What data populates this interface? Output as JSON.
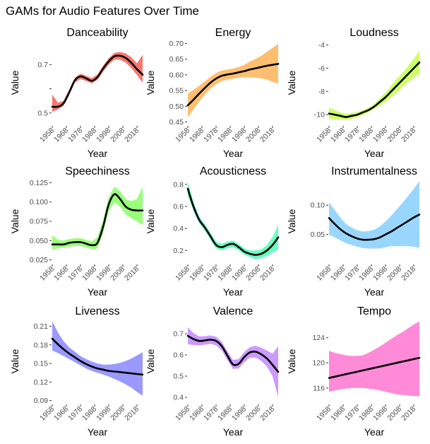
{
  "title": "GAMs for Audio Features Over Time",
  "chart_data": [
    {
      "type": "area",
      "title": "Danceability",
      "xlabel": "Year",
      "ylabel": "Value",
      "color": "#F8766D",
      "xlim": [
        1958,
        2022
      ],
      "ylim": [
        0.45,
        0.8
      ],
      "yticks": [
        0.5,
        0.6,
        0.7
      ],
      "ytick_labels": [
        "0.5",
        "",
        "0.7"
      ],
      "x": [
        1958,
        1962,
        1966,
        1970,
        1974,
        1978,
        1982,
        1986,
        1990,
        1994,
        1998,
        2002,
        2006,
        2010,
        2014,
        2018,
        2022
      ],
      "fit": [
        0.526,
        0.526,
        0.54,
        0.585,
        0.635,
        0.651,
        0.643,
        0.633,
        0.648,
        0.683,
        0.713,
        0.734,
        0.736,
        0.727,
        0.707,
        0.681,
        0.658
      ],
      "lower": [
        0.505,
        0.515,
        0.53,
        0.575,
        0.625,
        0.64,
        0.632,
        0.622,
        0.637,
        0.671,
        0.7,
        0.72,
        0.72,
        0.708,
        0.685,
        0.657,
        0.625
      ],
      "upper": [
        0.577,
        0.542,
        0.551,
        0.596,
        0.645,
        0.662,
        0.654,
        0.644,
        0.659,
        0.695,
        0.726,
        0.748,
        0.752,
        0.746,
        0.73,
        0.705,
        0.741
      ]
    },
    {
      "type": "area",
      "title": "Energy",
      "xlabel": "Year",
      "ylabel": "Value",
      "color": "#FDBF6F",
      "xlim": [
        1958,
        2022
      ],
      "ylim": [
        0.44,
        0.71
      ],
      "yticks": [
        0.45,
        0.5,
        0.55,
        0.6,
        0.65,
        0.7
      ],
      "ytick_labels": [
        "0.45",
        "0.50",
        "0.55",
        "0.60",
        "0.65",
        "0.70"
      ],
      "x": [
        1958,
        1962,
        1966,
        1970,
        1974,
        1978,
        1982,
        1986,
        1990,
        1994,
        1998,
        2002,
        2006,
        2010,
        2014,
        2018,
        2022
      ],
      "fit": [
        0.503,
        0.521,
        0.54,
        0.558,
        0.575,
        0.588,
        0.597,
        0.601,
        0.604,
        0.608,
        0.612,
        0.617,
        0.621,
        0.625,
        0.629,
        0.632,
        0.635
      ],
      "lower": [
        0.465,
        0.49,
        0.515,
        0.537,
        0.556,
        0.57,
        0.58,
        0.585,
        0.588,
        0.591,
        0.592,
        0.592,
        0.591,
        0.589,
        0.585,
        0.578,
        0.572
      ],
      "upper": [
        0.541,
        0.552,
        0.565,
        0.579,
        0.594,
        0.606,
        0.614,
        0.617,
        0.62,
        0.625,
        0.632,
        0.642,
        0.651,
        0.661,
        0.673,
        0.686,
        0.698
      ]
    },
    {
      "type": "area",
      "title": "Loudness",
      "xlabel": "Year",
      "ylabel": "Value",
      "color": "#CCFF66",
      "xlim": [
        1958,
        2022
      ],
      "ylim": [
        -10.9,
        -3.6
      ],
      "yticks": [
        -10,
        -8,
        -6,
        -4
      ],
      "ytick_labels": [
        "-10",
        "-8",
        "-6",
        "-4"
      ],
      "x": [
        1958,
        1962,
        1966,
        1970,
        1974,
        1978,
        1982,
        1986,
        1990,
        1994,
        1998,
        2002,
        2006,
        2010,
        2014,
        2018,
        2022
      ],
      "fit": [
        -9.9,
        -10.0,
        -10.1,
        -10.2,
        -10.1,
        -10.0,
        -9.8,
        -9.6,
        -9.3,
        -8.9,
        -8.5,
        -8.0,
        -7.5,
        -7.0,
        -6.5,
        -6.0,
        -5.5
      ],
      "lower": [
        -10.4,
        -10.4,
        -10.4,
        -10.45,
        -10.35,
        -10.2,
        -10.0,
        -9.8,
        -9.5,
        -9.2,
        -8.9,
        -8.5,
        -8.1,
        -7.6,
        -7.2,
        -6.8,
        -6.5
      ],
      "upper": [
        -9.4,
        -9.6,
        -9.8,
        -9.95,
        -9.85,
        -9.8,
        -9.6,
        -9.4,
        -9.1,
        -8.6,
        -8.1,
        -7.5,
        -6.9,
        -6.4,
        -5.8,
        -5.2,
        -4.5
      ]
    },
    {
      "type": "area",
      "title": "Speechiness",
      "xlabel": "Year",
      "ylabel": "Value",
      "color": "#9AFF7A",
      "xlim": [
        1958,
        2022
      ],
      "ylim": [
        0.02,
        0.13
      ],
      "yticks": [
        0.025,
        0.05,
        0.075,
        0.1,
        0.125
      ],
      "ytick_labels": [
        "0.025",
        "0.050",
        "0.075",
        "0.100",
        "0.125"
      ],
      "x": [
        1958,
        1962,
        1966,
        1970,
        1974,
        1978,
        1982,
        1986,
        1990,
        1994,
        1998,
        2002,
        2006,
        2010,
        2014,
        2018,
        2022
      ],
      "fit": [
        0.045,
        0.045,
        0.045,
        0.047,
        0.048,
        0.048,
        0.046,
        0.044,
        0.047,
        0.068,
        0.097,
        0.11,
        0.104,
        0.094,
        0.09,
        0.089,
        0.089
      ],
      "lower": [
        0.038,
        0.04,
        0.041,
        0.042,
        0.043,
        0.043,
        0.041,
        0.039,
        0.04,
        0.06,
        0.088,
        0.1,
        0.094,
        0.084,
        0.079,
        0.075,
        0.07
      ],
      "upper": [
        0.057,
        0.051,
        0.05,
        0.052,
        0.053,
        0.053,
        0.051,
        0.049,
        0.054,
        0.076,
        0.106,
        0.12,
        0.114,
        0.104,
        0.101,
        0.104,
        0.12
      ]
    },
    {
      "type": "area",
      "title": "Acousticness",
      "xlabel": "Year",
      "ylabel": "Value",
      "color": "#66FFC2",
      "xlim": [
        1958,
        2022
      ],
      "ylim": [
        0.08,
        0.85
      ],
      "yticks": [
        0.2,
        0.4,
        0.6,
        0.8
      ],
      "ytick_labels": [
        "0.2",
        "0.4",
        "0.6",
        "0.8"
      ],
      "x": [
        1958,
        1962,
        1966,
        1970,
        1974,
        1978,
        1982,
        1986,
        1990,
        1994,
        1998,
        2002,
        2006,
        2010,
        2014,
        2018,
        2022
      ],
      "fit": [
        0.76,
        0.6,
        0.48,
        0.41,
        0.33,
        0.25,
        0.23,
        0.25,
        0.26,
        0.23,
        0.19,
        0.17,
        0.16,
        0.17,
        0.2,
        0.25,
        0.32
      ],
      "lower": [
        0.7,
        0.56,
        0.45,
        0.38,
        0.3,
        0.22,
        0.2,
        0.22,
        0.23,
        0.2,
        0.16,
        0.14,
        0.12,
        0.13,
        0.15,
        0.18,
        0.21
      ],
      "upper": [
        0.82,
        0.64,
        0.51,
        0.44,
        0.36,
        0.28,
        0.26,
        0.28,
        0.29,
        0.26,
        0.22,
        0.2,
        0.2,
        0.21,
        0.25,
        0.32,
        0.43
      ]
    },
    {
      "type": "area",
      "title": "Instrumentalness",
      "xlabel": "Year",
      "ylabel": "Value",
      "color": "#99D6FF",
      "xlim": [
        1958,
        2022
      ],
      "ylim": [
        0.0,
        0.145
      ],
      "yticks": [
        0.05,
        0.1
      ],
      "ytick_labels": [
        "0.05",
        "0.10"
      ],
      "x": [
        1958,
        1962,
        1966,
        1970,
        1974,
        1978,
        1982,
        1986,
        1990,
        1994,
        1998,
        2002,
        2006,
        2010,
        2014,
        2018,
        2022
      ],
      "fit": [
        0.078,
        0.068,
        0.059,
        0.052,
        0.047,
        0.043,
        0.041,
        0.041,
        0.042,
        0.045,
        0.05,
        0.055,
        0.061,
        0.067,
        0.073,
        0.079,
        0.084
      ],
      "lower": [
        0.05,
        0.045,
        0.04,
        0.035,
        0.032,
        0.029,
        0.027,
        0.026,
        0.026,
        0.026,
        0.028,
        0.03,
        0.03,
        0.03,
        0.03,
        0.029,
        0.027
      ],
      "upper": [
        0.105,
        0.092,
        0.079,
        0.068,
        0.062,
        0.057,
        0.055,
        0.056,
        0.058,
        0.064,
        0.072,
        0.082,
        0.093,
        0.104,
        0.116,
        0.128,
        0.141
      ]
    },
    {
      "type": "area",
      "title": "Liveness",
      "xlabel": "Year",
      "ylabel": "Value",
      "color": "#9999FF",
      "xlim": [
        1958,
        2022
      ],
      "ylim": [
        0.085,
        0.222
      ],
      "yticks": [
        0.09,
        0.12,
        0.15,
        0.18,
        0.21
      ],
      "ytick_labels": [
        "0.09",
        "0.12",
        "0.15",
        "0.18",
        "0.21"
      ],
      "x": [
        1958,
        1962,
        1966,
        1970,
        1974,
        1978,
        1982,
        1986,
        1990,
        1994,
        1998,
        2002,
        2006,
        2010,
        2014,
        2018,
        2022
      ],
      "fit": [
        0.19,
        0.181,
        0.173,
        0.166,
        0.16,
        0.154,
        0.149,
        0.145,
        0.142,
        0.14,
        0.138,
        0.137,
        0.136,
        0.135,
        0.134,
        0.133,
        0.132
      ],
      "lower": [
        0.171,
        0.167,
        0.162,
        0.157,
        0.152,
        0.147,
        0.142,
        0.138,
        0.135,
        0.132,
        0.129,
        0.125,
        0.121,
        0.116,
        0.111,
        0.104,
        0.098
      ],
      "upper": [
        0.218,
        0.2,
        0.186,
        0.176,
        0.169,
        0.162,
        0.157,
        0.153,
        0.15,
        0.148,
        0.148,
        0.149,
        0.151,
        0.154,
        0.158,
        0.163,
        0.168
      ]
    },
    {
      "type": "area",
      "title": "Valence",
      "xlabel": "Year",
      "ylabel": "Value",
      "color": "#CC99FF",
      "xlim": [
        1958,
        2022
      ],
      "ylim": [
        0.37,
        0.77
      ],
      "yticks": [
        0.4,
        0.5,
        0.6,
        0.7
      ],
      "ytick_labels": [
        "0.4",
        "0.5",
        "0.6",
        "0.7"
      ],
      "x": [
        1958,
        1962,
        1966,
        1970,
        1974,
        1978,
        1982,
        1986,
        1990,
        1994,
        1998,
        2002,
        2006,
        2010,
        2014,
        2018,
        2022
      ],
      "fit": [
        0.69,
        0.675,
        0.666,
        0.668,
        0.672,
        0.666,
        0.642,
        0.597,
        0.555,
        0.558,
        0.59,
        0.612,
        0.615,
        0.603,
        0.583,
        0.553,
        0.52
      ],
      "lower": [
        0.65,
        0.647,
        0.645,
        0.648,
        0.652,
        0.646,
        0.622,
        0.576,
        0.534,
        0.536,
        0.566,
        0.587,
        0.587,
        0.572,
        0.545,
        0.5,
        0.4
      ],
      "upper": [
        0.73,
        0.703,
        0.687,
        0.688,
        0.692,
        0.686,
        0.662,
        0.618,
        0.576,
        0.58,
        0.614,
        0.637,
        0.643,
        0.634,
        0.621,
        0.606,
        0.64
      ]
    },
    {
      "type": "area",
      "title": "Tempo",
      "xlabel": "Year",
      "ylabel": "Value",
      "color": "#FF8AD8",
      "xlim": [
        1958,
        2022
      ],
      "ylim": [
        113.5,
        127.0
      ],
      "yticks": [
        116,
        120,
        124
      ],
      "ytick_labels": [
        "116",
        "120",
        "124"
      ],
      "x": [
        1958,
        1962,
        1966,
        1970,
        1974,
        1978,
        1982,
        1986,
        1990,
        1994,
        1998,
        2002,
        2006,
        2010,
        2014,
        2018,
        2022
      ],
      "fit": [
        117.6,
        117.8,
        118.0,
        118.2,
        118.4,
        118.6,
        118.8,
        119.0,
        119.2,
        119.4,
        119.6,
        119.8,
        120.0,
        120.2,
        120.4,
        120.6,
        120.8
      ],
      "lower": [
        115.4,
        115.6,
        115.8,
        115.9,
        116.0,
        116.0,
        116.0,
        115.9,
        115.8,
        115.6,
        115.4,
        115.2,
        115.0,
        114.9,
        114.8,
        114.7,
        114.7
      ],
      "upper": [
        121.9,
        121.6,
        121.4,
        121.2,
        121.1,
        121.1,
        121.2,
        121.6,
        122.1,
        122.6,
        123.2,
        123.8,
        124.4,
        124.9,
        125.5,
        126.1,
        126.6
      ]
    }
  ],
  "xticks": [
    1958,
    1968,
    1978,
    1988,
    1998,
    2008,
    2018
  ],
  "xtick_labels": [
    "1958",
    "1968",
    "1978",
    "1988",
    "1998",
    "2008",
    "2018"
  ]
}
